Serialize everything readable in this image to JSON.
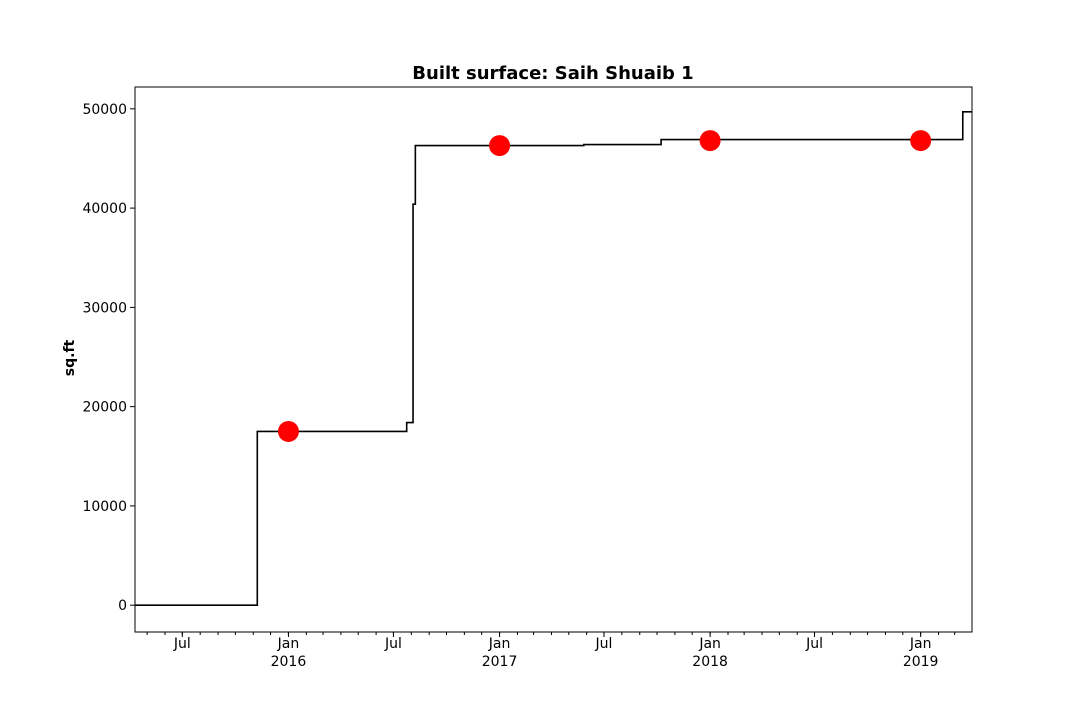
{
  "chart_data": {
    "type": "line",
    "title": "Built surface: Saih Shuaib 1",
    "xlabel": "",
    "ylabel": "sq.ft",
    "xlim": [
      "2015-04-10",
      "2019-03-31"
    ],
    "ylim": [
      -2700,
      52200
    ],
    "yticks": [
      0,
      10000,
      20000,
      30000,
      40000,
      50000
    ],
    "xticks": [
      {
        "date": "2015-07-01",
        "label": "Jul",
        "label2": ""
      },
      {
        "date": "2016-01-01",
        "label": "Jan",
        "label2": "2016"
      },
      {
        "date": "2016-07-01",
        "label": "Jul",
        "label2": ""
      },
      {
        "date": "2017-01-01",
        "label": "Jan",
        "label2": "2017"
      },
      {
        "date": "2017-07-01",
        "label": "Jul",
        "label2": ""
      },
      {
        "date": "2018-01-01",
        "label": "Jan",
        "label2": "2018"
      },
      {
        "date": "2018-07-01",
        "label": "Jul",
        "label2": ""
      },
      {
        "date": "2019-01-01",
        "label": "Jan",
        "label2": "2019"
      }
    ],
    "series": [
      {
        "style": "step",
        "color": "#000000",
        "points": [
          {
            "x": "2015-04-10",
            "y": 0
          },
          {
            "x": "2015-11-08",
            "y": 0
          },
          {
            "x": "2015-11-08",
            "y": 17500
          },
          {
            "x": "2016-07-24",
            "y": 17500
          },
          {
            "x": "2016-07-24",
            "y": 18400
          },
          {
            "x": "2016-08-04",
            "y": 18400
          },
          {
            "x": "2016-08-04",
            "y": 40400
          },
          {
            "x": "2016-08-08",
            "y": 40400
          },
          {
            "x": "2016-08-08",
            "y": 46300
          },
          {
            "x": "2017-05-27",
            "y": 46300
          },
          {
            "x": "2017-05-27",
            "y": 46400
          },
          {
            "x": "2017-10-08",
            "y": 46400
          },
          {
            "x": "2017-10-08",
            "y": 46900
          },
          {
            "x": "2019-03-15",
            "y": 46900
          },
          {
            "x": "2019-03-15",
            "y": 49700
          },
          {
            "x": "2019-03-31",
            "y": 49700
          }
        ]
      },
      {
        "style": "markers",
        "color": "#ff0000",
        "points": [
          {
            "x": "2016-01-01",
            "y": 17500
          },
          {
            "x": "2017-01-01",
            "y": 46300
          },
          {
            "x": "2018-01-01",
            "y": 46800
          },
          {
            "x": "2019-01-01",
            "y": 46800
          }
        ]
      }
    ],
    "grid": false,
    "legend": "none"
  }
}
